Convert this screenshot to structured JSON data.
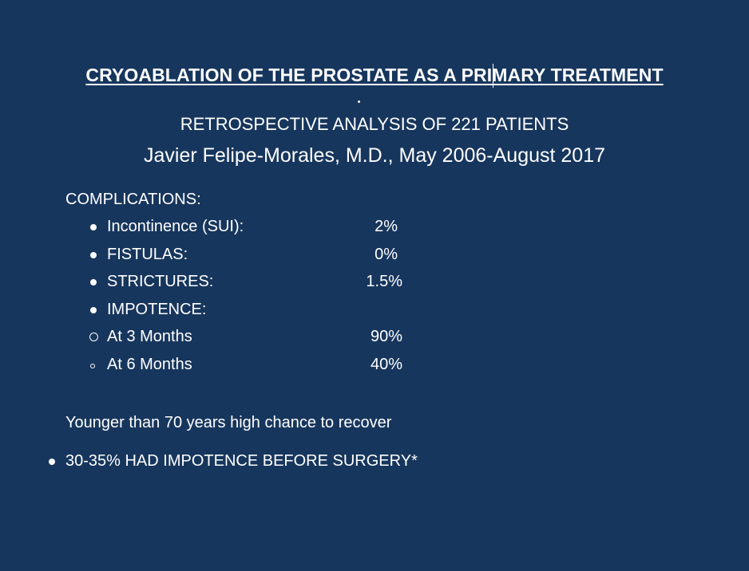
{
  "title": "CRYOABLATION OF THE PROSTATE AS A PRIMARY TREATMENT",
  "subtitle_1": "RETROSPECTIVE ANALYSIS OF 221 PATIENTS",
  "subtitle_2": "Javier Felipe-Morales, M.D., May 2006-August 2017",
  "complications": {
    "heading": "COMPLICATIONS:",
    "items": [
      {
        "label": "Incontinence (SUI):",
        "value": "2%"
      },
      {
        "label": "FISTULAS:",
        "value": "0%"
      },
      {
        "label": "STRICTURES:",
        "value": "1.5%"
      },
      {
        "label": "IMPOTENCE:",
        "value": ""
      }
    ],
    "sub_items": [
      {
        "label": "At 3 Months",
        "value": "90%"
      },
      {
        "label": "At 6 Months",
        "value": "40%"
      }
    ]
  },
  "note": "Younger than 70 years high chance to recover",
  "footnote": "30-35% HAD IMPOTENCE BEFORE SURGERY*",
  "colors": {
    "background": "#17365d",
    "text": "#ffffff"
  }
}
